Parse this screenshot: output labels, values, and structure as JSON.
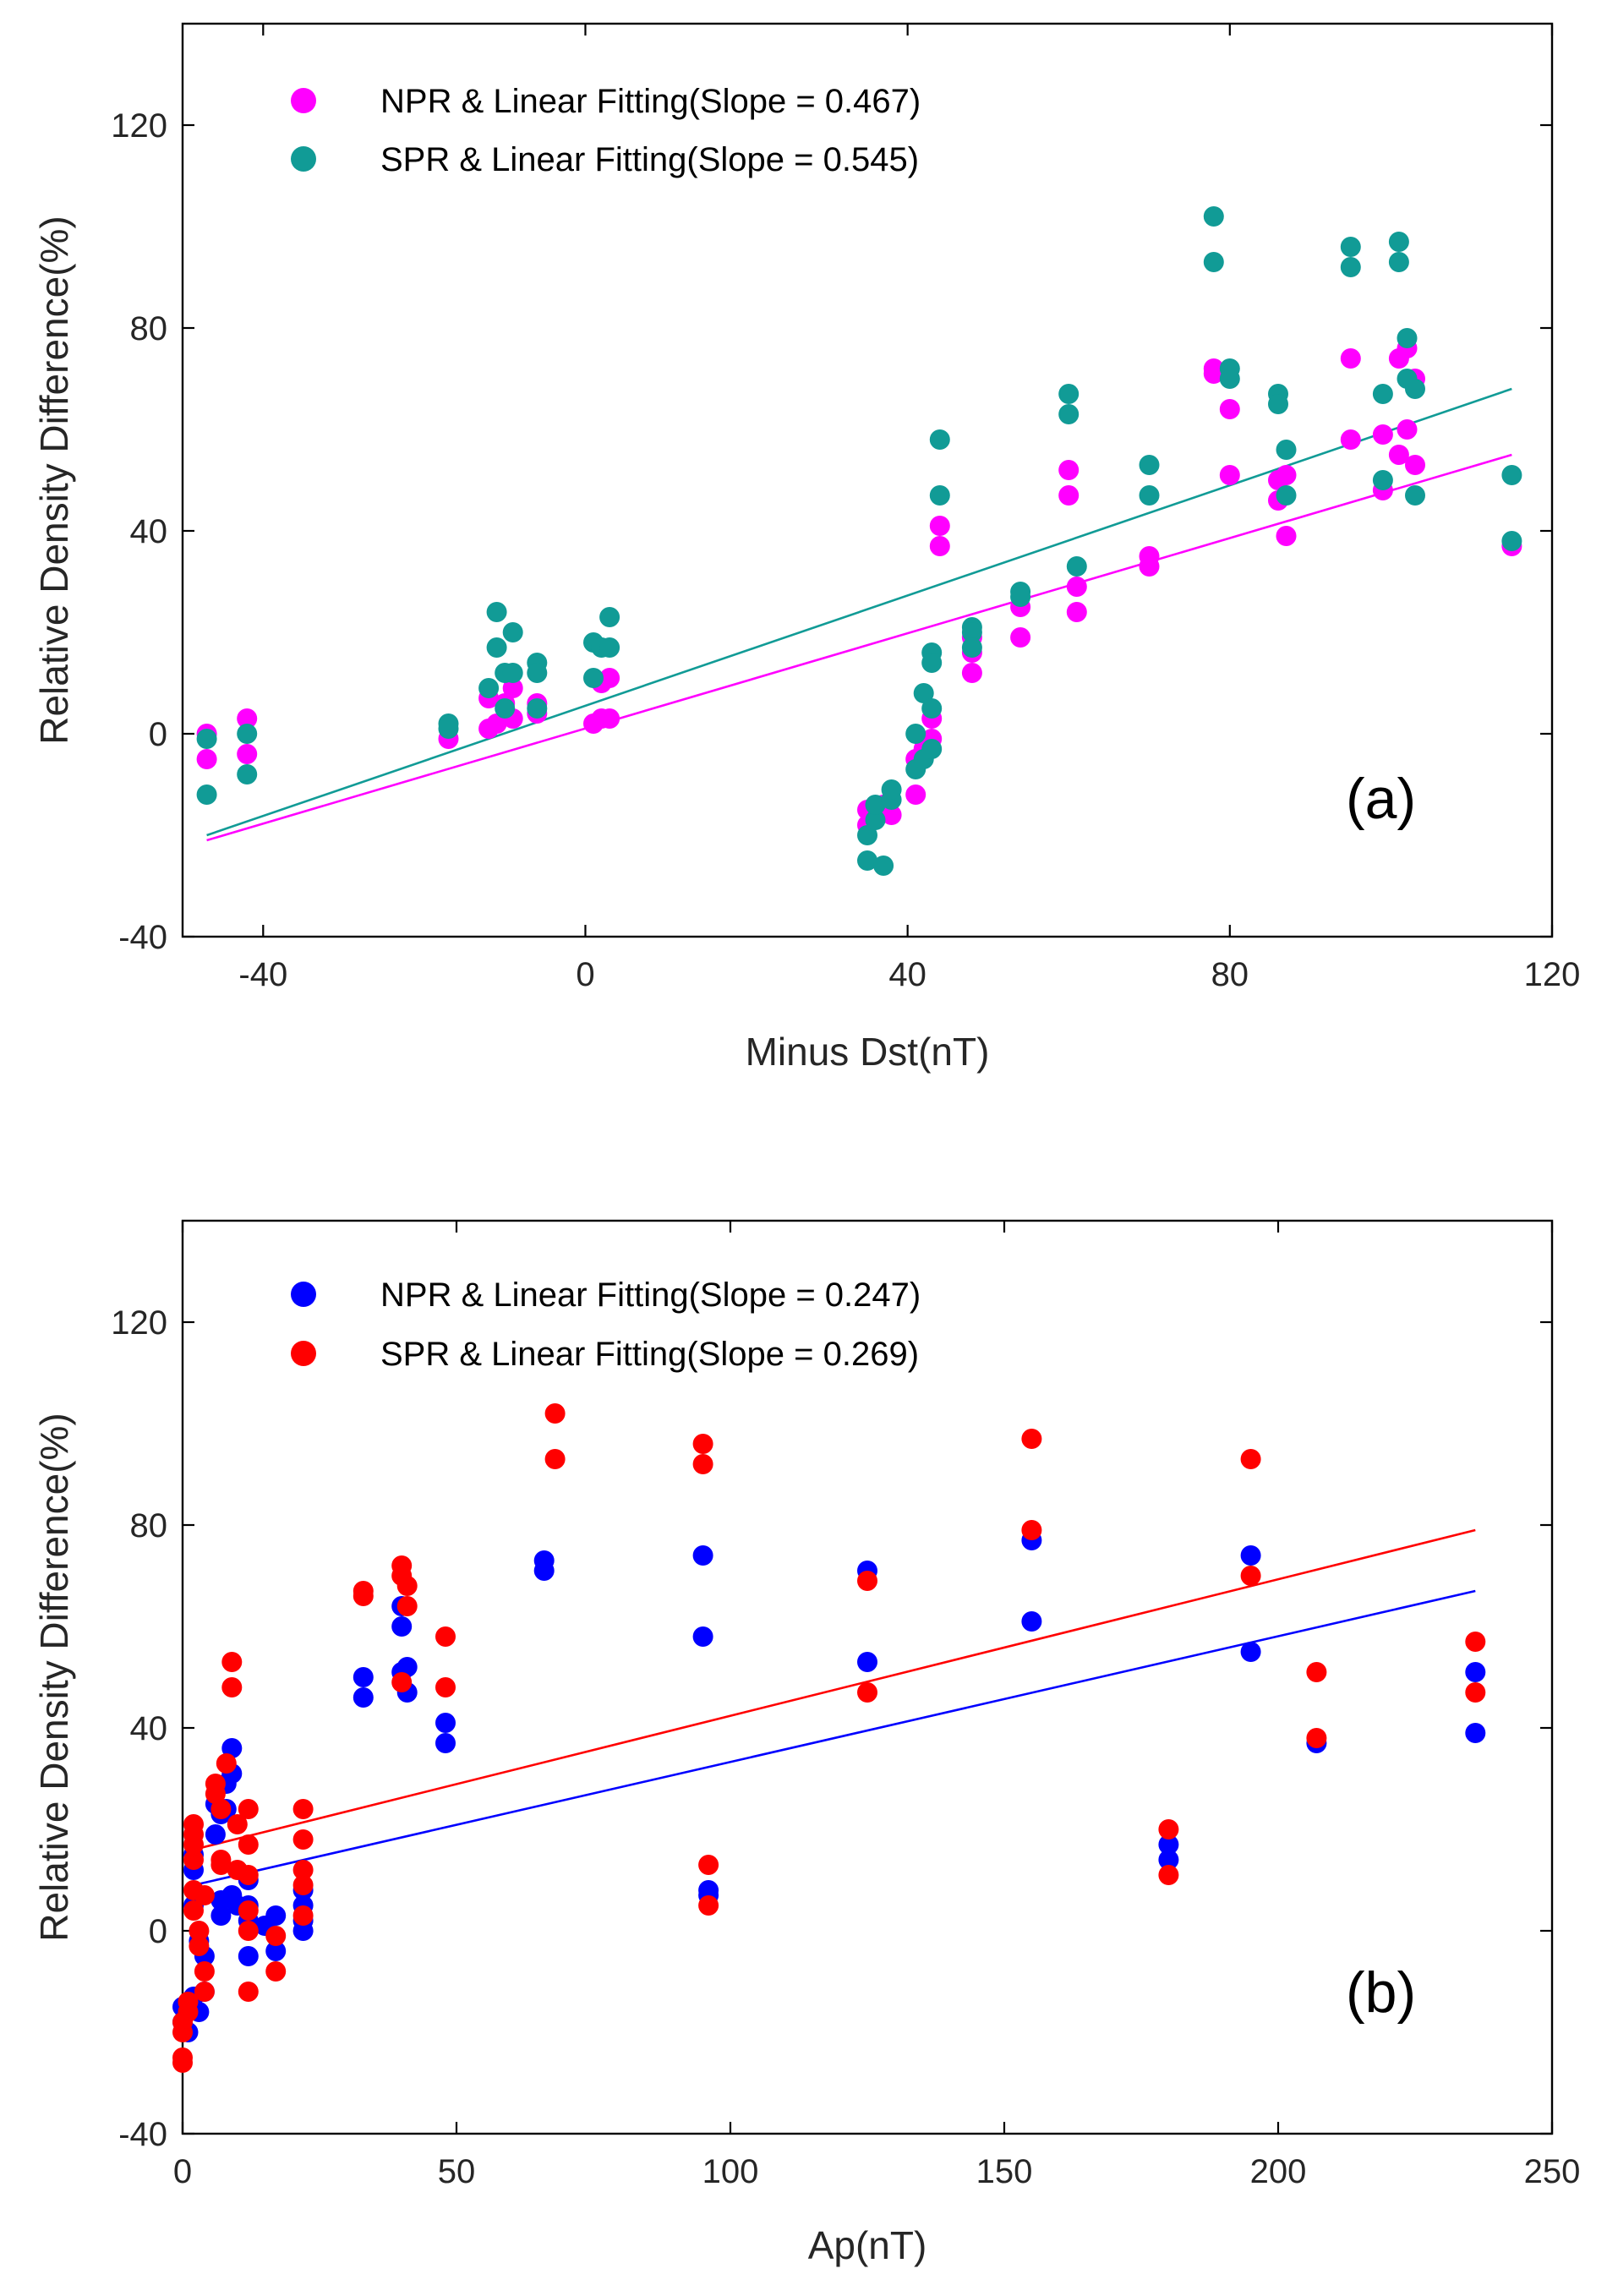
{
  "chart_data": [
    {
      "type": "scatter",
      "panel_label": "(a)",
      "xlabel": "Minus Dst(nT)",
      "ylabel": "Relative Density Difference(%)",
      "xlim": [
        -50,
        120
      ],
      "ylim": [
        -40,
        140
      ],
      "xticks": [
        -40,
        0,
        40,
        80,
        120
      ],
      "yticks": [
        -40,
        0,
        40,
        80,
        120
      ],
      "legend_position": "top-left",
      "grid": false,
      "series": [
        {
          "name": "NPR & Linear Fitting(Slope = 0.467)",
          "color": "#ff00ff",
          "fit_line": [
            [
              -47,
              -21
            ],
            [
              115,
              55
            ]
          ],
          "points": [
            [
              -47,
              0
            ],
            [
              -47,
              -5
            ],
            [
              -42,
              3
            ],
            [
              -42,
              -4
            ],
            [
              -17,
              -1
            ],
            [
              -12,
              7
            ],
            [
              -12,
              1
            ],
            [
              -11,
              2
            ],
            [
              -10,
              6
            ],
            [
              -9,
              9
            ],
            [
              -9,
              3
            ],
            [
              -6,
              6
            ],
            [
              -6,
              4
            ],
            [
              1,
              2
            ],
            [
              2,
              10
            ],
            [
              2,
              3
            ],
            [
              3,
              11
            ],
            [
              3,
              3
            ],
            [
              35,
              -15
            ],
            [
              35,
              -18
            ],
            [
              36,
              -16
            ],
            [
              37,
              -14
            ],
            [
              38,
              -16
            ],
            [
              41,
              -12
            ],
            [
              41,
              -5
            ],
            [
              42,
              -3
            ],
            [
              43,
              -1
            ],
            [
              43,
              3
            ],
            [
              44,
              41
            ],
            [
              44,
              37
            ],
            [
              48,
              16
            ],
            [
              48,
              12
            ],
            [
              48,
              19
            ],
            [
              54,
              25
            ],
            [
              54,
              19
            ],
            [
              60,
              52
            ],
            [
              60,
              47
            ],
            [
              61,
              29
            ],
            [
              61,
              24
            ],
            [
              70,
              35
            ],
            [
              70,
              33
            ],
            [
              78,
              72
            ],
            [
              78,
              71
            ],
            [
              80,
              64
            ],
            [
              80,
              51
            ],
            [
              86,
              50
            ],
            [
              86,
              46
            ],
            [
              87,
              51
            ],
            [
              87,
              39
            ],
            [
              95,
              74
            ],
            [
              95,
              58
            ],
            [
              99,
              59
            ],
            [
              99,
              48
            ],
            [
              101,
              74
            ],
            [
              101,
              55
            ],
            [
              102,
              76
            ],
            [
              102,
              60
            ],
            [
              103,
              70
            ],
            [
              103,
              53
            ],
            [
              115,
              37
            ]
          ]
        },
        {
          "name": "SPR & Linear Fitting(Slope = 0.545)",
          "color": "#119b96",
          "fit_line": [
            [
              -47,
              -20
            ],
            [
              115,
              68
            ]
          ],
          "points": [
            [
              -47,
              -1
            ],
            [
              -47,
              -12
            ],
            [
              -42,
              0
            ],
            [
              -42,
              -8
            ],
            [
              -17,
              2
            ],
            [
              -17,
              1
            ],
            [
              -12,
              9
            ],
            [
              -11,
              24
            ],
            [
              -11,
              17
            ],
            [
              -10,
              12
            ],
            [
              -10,
              5
            ],
            [
              -9,
              20
            ],
            [
              -9,
              12
            ],
            [
              -6,
              14
            ],
            [
              -6,
              12
            ],
            [
              -6,
              5
            ],
            [
              1,
              18
            ],
            [
              1,
              11
            ],
            [
              2,
              17
            ],
            [
              3,
              23
            ],
            [
              3,
              17
            ],
            [
              35,
              -25
            ],
            [
              35,
              -20
            ],
            [
              36,
              -17
            ],
            [
              36,
              -14
            ],
            [
              37,
              -26
            ],
            [
              38,
              -13
            ],
            [
              38,
              -11
            ],
            [
              41,
              0
            ],
            [
              41,
              -7
            ],
            [
              42,
              8
            ],
            [
              42,
              -5
            ],
            [
              43,
              16
            ],
            [
              43,
              14
            ],
            [
              43,
              5
            ],
            [
              43,
              -3
            ],
            [
              44,
              58
            ],
            [
              44,
              47
            ],
            [
              48,
              21
            ],
            [
              48,
              20
            ],
            [
              48,
              17
            ],
            [
              54,
              28
            ],
            [
              54,
              27
            ],
            [
              60,
              67
            ],
            [
              60,
              63
            ],
            [
              61,
              33
            ],
            [
              70,
              53
            ],
            [
              70,
              47
            ],
            [
              78,
              102
            ],
            [
              78,
              93
            ],
            [
              80,
              72
            ],
            [
              80,
              70
            ],
            [
              86,
              67
            ],
            [
              86,
              65
            ],
            [
              87,
              56
            ],
            [
              87,
              47
            ],
            [
              95,
              96
            ],
            [
              95,
              92
            ],
            [
              99,
              67
            ],
            [
              99,
              50
            ],
            [
              101,
              97
            ],
            [
              101,
              93
            ],
            [
              102,
              78
            ],
            [
              102,
              70
            ],
            [
              103,
              68
            ],
            [
              103,
              47
            ],
            [
              115,
              51
            ],
            [
              115,
              38
            ]
          ]
        }
      ]
    },
    {
      "type": "scatter",
      "panel_label": "(b)",
      "xlabel": "Ap(nT)",
      "ylabel": "Relative Density Difference(%)",
      "xlim": [
        0,
        250
      ],
      "ylim": [
        -40,
        140
      ],
      "xticks": [
        0,
        50,
        100,
        150,
        200,
        250
      ],
      "yticks": [
        -40,
        0,
        40,
        80,
        120
      ],
      "legend_position": "top-left",
      "grid": false,
      "series": [
        {
          "name": "NPR & Linear Fitting(Slope = 0.247)",
          "color": "#0000ff",
          "fit_line": [
            [
              2,
              9
            ],
            [
              236,
              67
            ]
          ],
          "points": [
            [
              0,
              -15
            ],
            [
              0,
              -18
            ],
            [
              1,
              -20
            ],
            [
              2,
              15
            ],
            [
              2,
              12
            ],
            [
              2,
              5
            ],
            [
              2,
              -13
            ],
            [
              3,
              -16
            ],
            [
              3,
              -2
            ],
            [
              4,
              -12
            ],
            [
              4,
              -5
            ],
            [
              6,
              25
            ],
            [
              6,
              19
            ],
            [
              7,
              23
            ],
            [
              7,
              6
            ],
            [
              7,
              3
            ],
            [
              8,
              29
            ],
            [
              8,
              24
            ],
            [
              9,
              36
            ],
            [
              9,
              31
            ],
            [
              9,
              7
            ],
            [
              10,
              5
            ],
            [
              12,
              10
            ],
            [
              12,
              5
            ],
            [
              12,
              2
            ],
            [
              12,
              -5
            ],
            [
              15,
              1
            ],
            [
              17,
              3
            ],
            [
              17,
              -4
            ],
            [
              22,
              8
            ],
            [
              22,
              5
            ],
            [
              22,
              2
            ],
            [
              22,
              0
            ],
            [
              33,
              50
            ],
            [
              33,
              46
            ],
            [
              40,
              64
            ],
            [
              40,
              60
            ],
            [
              40,
              51
            ],
            [
              41,
              52
            ],
            [
              41,
              47
            ],
            [
              48,
              41
            ],
            [
              48,
              37
            ],
            [
              66,
              73
            ],
            [
              66,
              71
            ],
            [
              95,
              74
            ],
            [
              95,
              58
            ],
            [
              96,
              8
            ],
            [
              96,
              7
            ],
            [
              125,
              71
            ],
            [
              125,
              53
            ],
            [
              155,
              77
            ],
            [
              155,
              61
            ],
            [
              180,
              17
            ],
            [
              180,
              14
            ],
            [
              195,
              74
            ],
            [
              195,
              55
            ],
            [
              207,
              37
            ],
            [
              236,
              51
            ],
            [
              236,
              39
            ]
          ]
        },
        {
          "name": "SPR & Linear Fitting(Slope = 0.269)",
          "color": "#ff0000",
          "fit_line": [
            [
              2,
              16
            ],
            [
              236,
              79
            ]
          ],
          "points": [
            [
              0,
              -25
            ],
            [
              0,
              -26
            ],
            [
              0,
              -18
            ],
            [
              0,
              -20
            ],
            [
              1,
              -16
            ],
            [
              1,
              -14
            ],
            [
              2,
              21
            ],
            [
              2,
              19
            ],
            [
              2,
              17
            ],
            [
              2,
              14
            ],
            [
              2,
              8
            ],
            [
              2,
              4
            ],
            [
              3,
              0
            ],
            [
              3,
              -3
            ],
            [
              4,
              7
            ],
            [
              4,
              -8
            ],
            [
              4,
              -12
            ],
            [
              6,
              29
            ],
            [
              6,
              27
            ],
            [
              7,
              24
            ],
            [
              7,
              14
            ],
            [
              7,
              13
            ],
            [
              8,
              33
            ],
            [
              9,
              53
            ],
            [
              9,
              48
            ],
            [
              10,
              21
            ],
            [
              10,
              12
            ],
            [
              12,
              24
            ],
            [
              12,
              17
            ],
            [
              12,
              11
            ],
            [
              12,
              4
            ],
            [
              12,
              0
            ],
            [
              12,
              -12
            ],
            [
              17,
              -1
            ],
            [
              17,
              -8
            ],
            [
              22,
              24
            ],
            [
              22,
              18
            ],
            [
              22,
              12
            ],
            [
              22,
              9
            ],
            [
              22,
              3
            ],
            [
              33,
              67
            ],
            [
              33,
              66
            ],
            [
              40,
              72
            ],
            [
              40,
              70
            ],
            [
              41,
              68
            ],
            [
              41,
              64
            ],
            [
              40,
              49
            ],
            [
              48,
              58
            ],
            [
              48,
              48
            ],
            [
              68,
              102
            ],
            [
              68,
              93
            ],
            [
              95,
              96
            ],
            [
              95,
              92
            ],
            [
              96,
              13
            ],
            [
              96,
              5
            ],
            [
              125,
              69
            ],
            [
              125,
              47
            ],
            [
              155,
              97
            ],
            [
              155,
              79
            ],
            [
              180,
              20
            ],
            [
              180,
              11
            ],
            [
              195,
              93
            ],
            [
              195,
              70
            ],
            [
              207,
              51
            ],
            [
              207,
              38
            ],
            [
              236,
              57
            ],
            [
              236,
              47
            ]
          ]
        }
      ]
    }
  ]
}
